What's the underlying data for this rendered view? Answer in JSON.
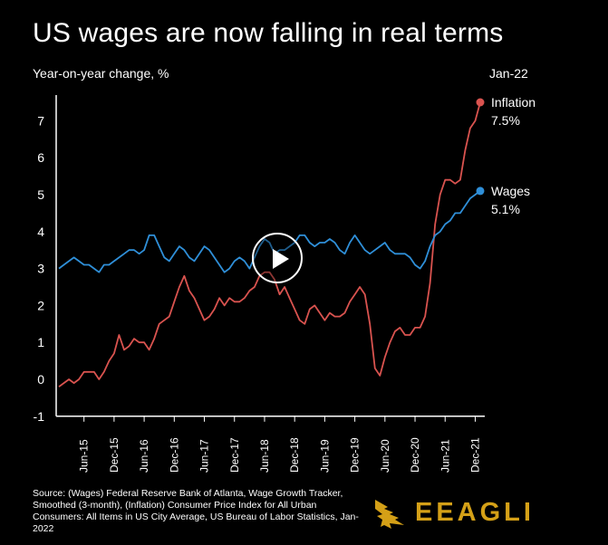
{
  "header": {
    "title": "US wages are now falling in real terms",
    "subtitle": "Year-on-year change, %",
    "date_label": "Jan-22"
  },
  "footer": {
    "source": "Source: (Wages) Federal Reserve Bank of Atlanta, Wage Growth Tracker, Smoothed (3-month), (Inflation) Consumer Price Index for All Urban Consumers: All Items in US City Average, US Bureau of Labor Statistics, Jan-2022",
    "brand": "EEAGLI"
  },
  "colors": {
    "inflation": "#d9534f",
    "wages": "#2f8fd8",
    "brand": "#d4a017",
    "background": "#000000"
  },
  "icons": {
    "play": "play-icon",
    "logo": "eagle-icon"
  },
  "chart_data": {
    "type": "line",
    "ylabel": "Year-on-year change, %",
    "ylim": [
      -1,
      7.5
    ],
    "yticks": [
      -1,
      0,
      1,
      2,
      3,
      4,
      5,
      6,
      7
    ],
    "x_start": "2015-01",
    "xticks": [
      "Jun-15",
      "Dec-15",
      "Jun-16",
      "Dec-16",
      "Jun-17",
      "Dec-17",
      "Jun-18",
      "Dec-18",
      "Jun-19",
      "Dec-19",
      "Jun-20",
      "Dec-20",
      "Jun-21",
      "Dec-21"
    ],
    "series": [
      {
        "name": "Inflation",
        "end_label": "Inflation",
        "end_value_label": "7.5%",
        "values": [
          -0.2,
          -0.1,
          0.0,
          -0.1,
          0.0,
          0.2,
          0.2,
          0.2,
          0.0,
          0.2,
          0.5,
          0.7,
          1.2,
          0.8,
          0.9,
          1.1,
          1.0,
          1.0,
          0.8,
          1.1,
          1.5,
          1.6,
          1.7,
          2.1,
          2.5,
          2.8,
          2.4,
          2.2,
          1.9,
          1.6,
          1.7,
          1.9,
          2.2,
          2.0,
          2.2,
          2.1,
          2.1,
          2.2,
          2.4,
          2.5,
          2.8,
          2.9,
          2.9,
          2.7,
          2.3,
          2.5,
          2.2,
          1.9,
          1.6,
          1.5,
          1.9,
          2.0,
          1.8,
          1.6,
          1.8,
          1.7,
          1.7,
          1.8,
          2.1,
          2.3,
          2.5,
          2.3,
          1.5,
          0.3,
          0.1,
          0.6,
          1.0,
          1.3,
          1.4,
          1.2,
          1.2,
          1.4,
          1.4,
          1.7,
          2.6,
          4.2,
          5.0,
          5.4,
          5.4,
          5.3,
          5.4,
          6.2,
          6.8,
          7.0,
          7.5
        ],
        "color": "#d9534f"
      },
      {
        "name": "Wages",
        "end_label": "Wages",
        "end_value_label": "5.1%",
        "values": [
          3.0,
          3.1,
          3.2,
          3.3,
          3.2,
          3.1,
          3.1,
          3.0,
          2.9,
          3.1,
          3.1,
          3.2,
          3.3,
          3.4,
          3.5,
          3.5,
          3.4,
          3.5,
          3.9,
          3.9,
          3.6,
          3.3,
          3.2,
          3.4,
          3.6,
          3.5,
          3.3,
          3.2,
          3.4,
          3.6,
          3.5,
          3.3,
          3.1,
          2.9,
          3.0,
          3.2,
          3.3,
          3.2,
          3.0,
          3.3,
          3.6,
          3.8,
          3.7,
          3.4,
          3.5,
          3.5,
          3.6,
          3.7,
          3.9,
          3.9,
          3.7,
          3.6,
          3.7,
          3.7,
          3.8,
          3.7,
          3.5,
          3.4,
          3.7,
          3.9,
          3.7,
          3.5,
          3.4,
          3.5,
          3.6,
          3.7,
          3.5,
          3.4,
          3.4,
          3.4,
          3.3,
          3.1,
          3.0,
          3.2,
          3.6,
          3.9,
          4.0,
          4.2,
          4.3,
          4.5,
          4.5,
          4.7,
          4.9,
          5.0,
          5.1
        ],
        "color": "#2f8fd8"
      }
    ]
  }
}
